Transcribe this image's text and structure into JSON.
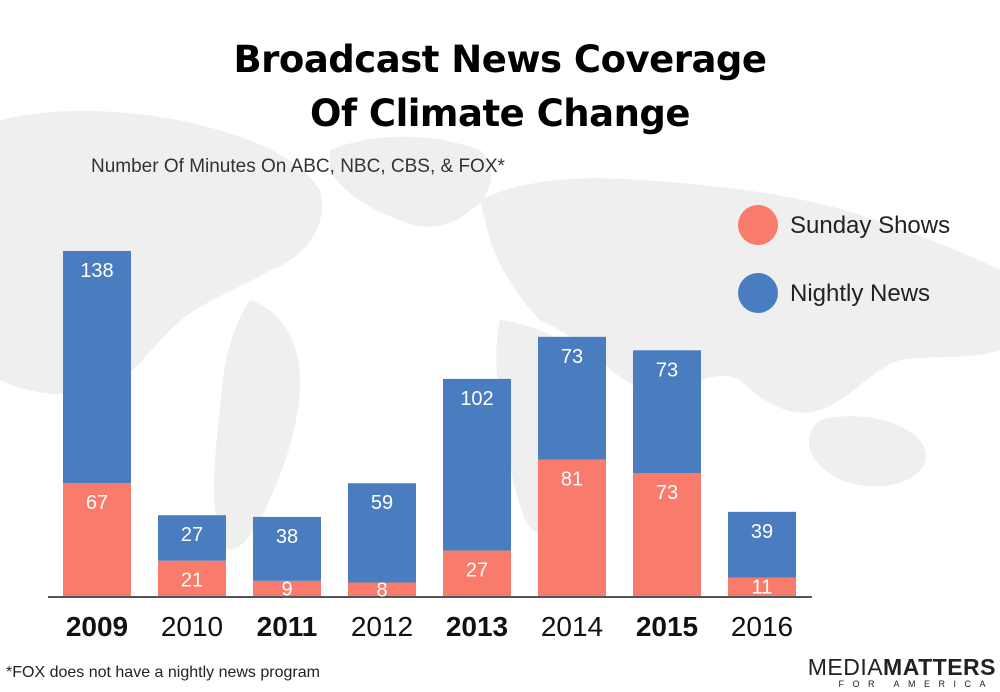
{
  "title_line1": "Broadcast News Coverage",
  "title_line2": "Of Climate Change",
  "subtitle": "Number Of Minutes On ABC, NBC, CBS, & FOX*",
  "footnote": "*FOX does not have a nightly news program",
  "brand": {
    "top_bold_part1": "MEDIA",
    "top_bold_part2": "MATTERS",
    "bottom": "FOR AMERICA"
  },
  "colors": {
    "sunday": "#f97b6b",
    "nightly": "#4a7cc0",
    "axis": "#555555",
    "map": "#efefef"
  },
  "chart_data": {
    "type": "bar",
    "stacked": true,
    "categories": [
      "2009",
      "2010",
      "2011",
      "2012",
      "2013",
      "2014",
      "2015",
      "2016"
    ],
    "bold_categories": [
      "2009",
      "2011",
      "2013",
      "2015"
    ],
    "series": [
      {
        "name": "Sunday Shows",
        "color": "#f97b6b",
        "values": [
          67,
          21,
          9,
          8,
          27,
          81,
          73,
          11
        ]
      },
      {
        "name": "Nightly News",
        "color": "#4a7cc0",
        "values": [
          138,
          27,
          38,
          59,
          102,
          73,
          73,
          39
        ]
      }
    ],
    "title": "Broadcast News Coverage Of Climate Change",
    "xlabel": "",
    "ylabel": "",
    "ylim": [
      0,
      205
    ],
    "grid": false,
    "legend_position": "right"
  }
}
